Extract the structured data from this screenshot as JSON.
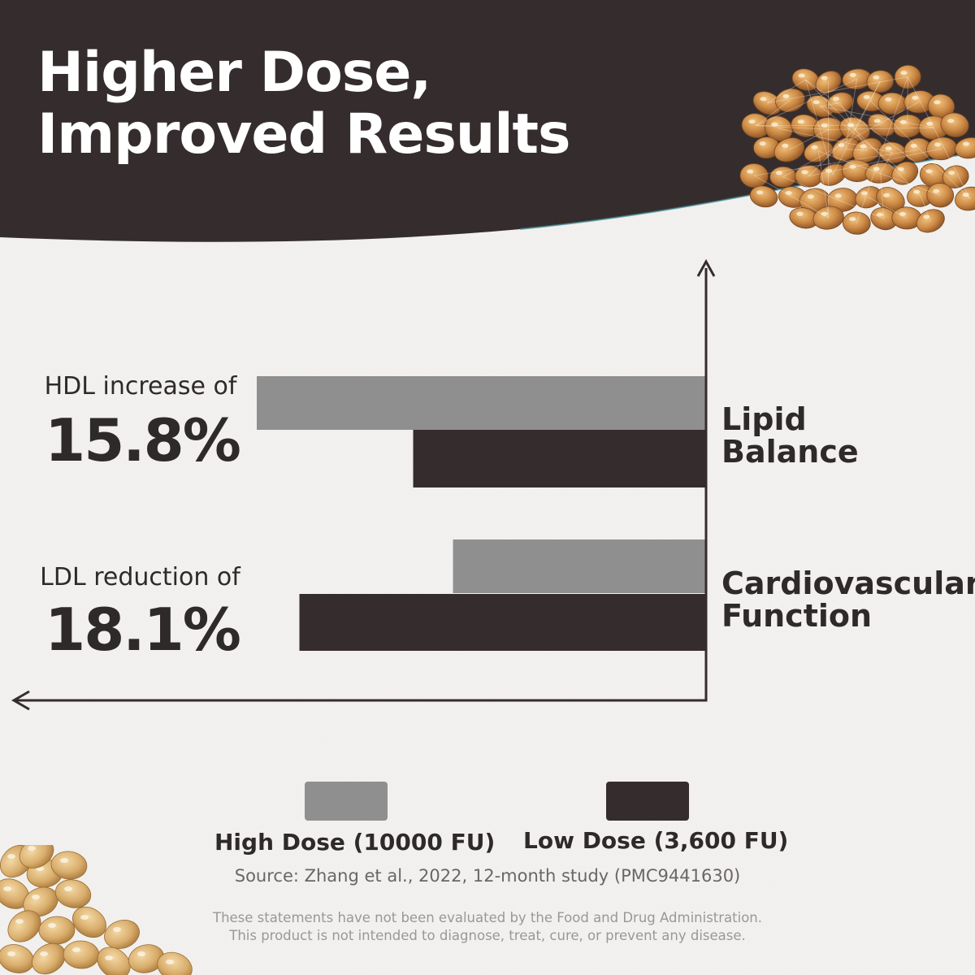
{
  "header": {
    "title_line1": "Higher Dose,",
    "title_line2": "Improved Results"
  },
  "colors": {
    "header_band": "#352d2d",
    "high_dose": "#8f8f8f",
    "low_dose": "#352d2d",
    "axis": "#352d2d",
    "background": "#f4f3f1"
  },
  "chart_data": {
    "type": "bar",
    "orientation": "horizontal",
    "categories": [
      "Lipid Balance",
      "Cardiovascular Function"
    ],
    "category_lines": [
      [
        "Lipid",
        "Balance"
      ],
      [
        "Cardiovascular",
        "Function"
      ]
    ],
    "series": [
      {
        "name": "High Dose (10000 FU)",
        "color": "#8f8f8f",
        "values": [
          15.8,
          8.9
        ]
      },
      {
        "name": "Low Dose (3,600 FU)",
        "color": "#352d2d",
        "values": [
          10.3,
          14.3
        ]
      }
    ],
    "units": "%",
    "xlim": [
      0,
      24.5
    ],
    "grid": false,
    "legend_position": "bottom",
    "annotations": [
      {
        "label": "HDL increase of",
        "value": "15.8%"
      },
      {
        "label": "LDL reduction of",
        "value": "18.1%"
      }
    ]
  },
  "legend": {
    "high_label": "High Dose (10000 FU)",
    "low_label": "Low Dose (3,600 FU)"
  },
  "footer": {
    "source": "Source: Zhang et al., 2022, 12-month study (PMC9441630)",
    "disclaimer_line1": "These statements have not been evaluated by the Food and Drug Administration.",
    "disclaimer_line2": "This product is not intended to diagnose, treat, cure, or prevent any disease."
  },
  "images": {
    "top_right": "natto-beans-icon",
    "bottom_left": "soybeans-icon"
  }
}
